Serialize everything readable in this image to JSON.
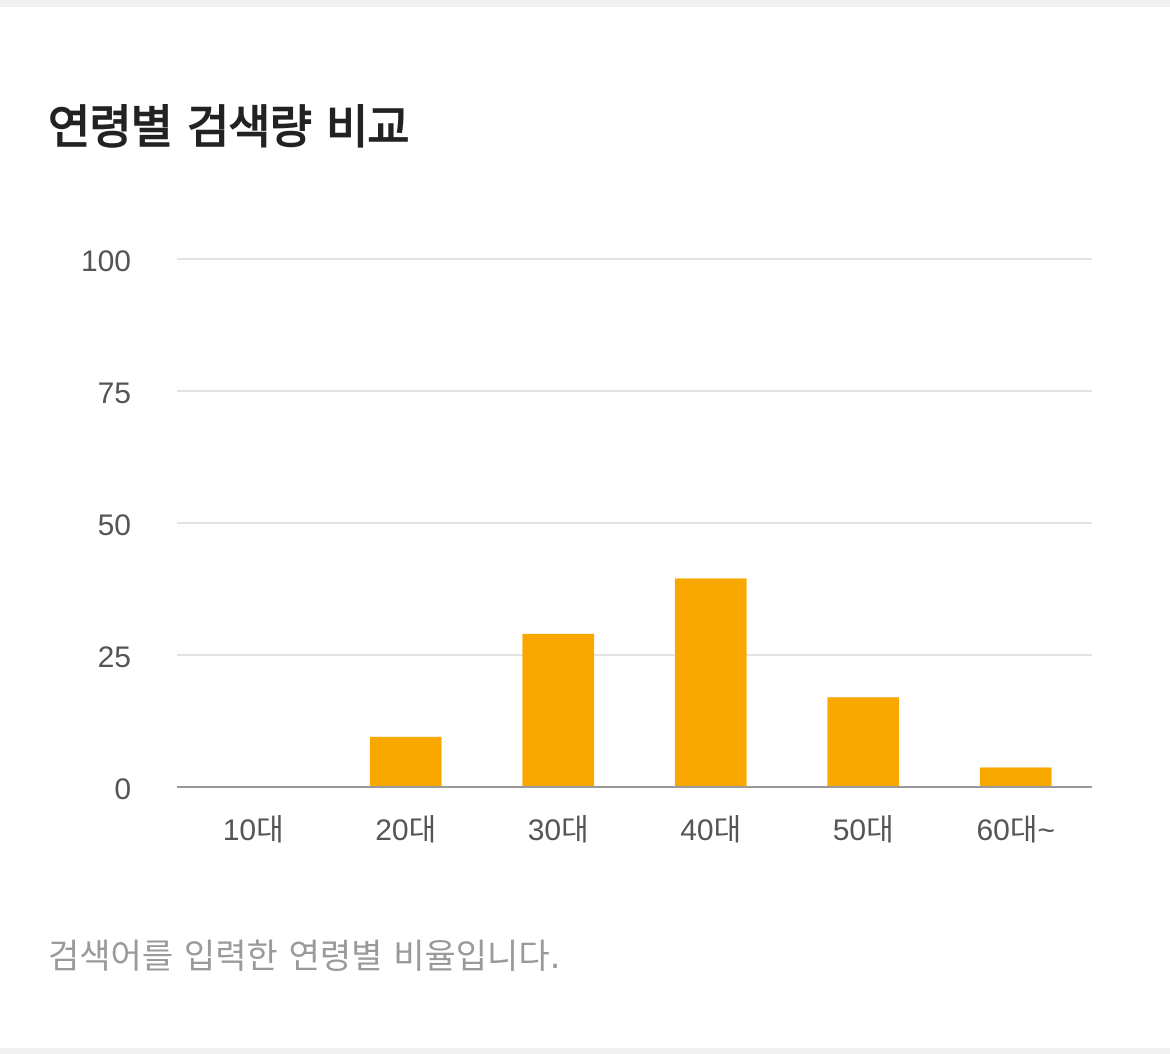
{
  "card": {
    "title": "연령별 검색량 비교",
    "caption": "검색어를 입력한 연령별 비율입니다."
  },
  "chart_data": {
    "type": "bar",
    "categories": [
      "10대",
      "20대",
      "30대",
      "40대",
      "50대",
      "60대~"
    ],
    "values": [
      0,
      9.5,
      29,
      39.5,
      17,
      3.7
    ],
    "ylim": [
      0,
      100
    ],
    "yticks": [
      0,
      25,
      50,
      75,
      100
    ],
    "grid": true,
    "title": "",
    "xlabel": "",
    "ylabel": "",
    "colors": {
      "bar": "#f9a800",
      "grid": "#e3e3e3",
      "axis": "#999999",
      "tick_label": "#555555"
    }
  }
}
